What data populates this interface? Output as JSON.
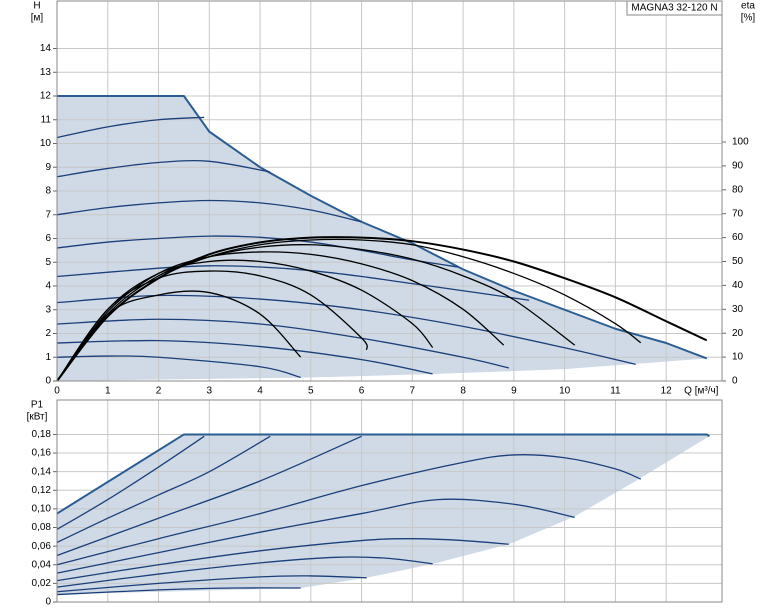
{
  "chart_data": [
    {
      "type": "line",
      "title": "MAGNA3 32-120 N",
      "xlabel": "Q [м³/ч]",
      "ylabel": "H",
      "yunit": "[м]",
      "y2label": "eta",
      "y2unit": "[%]",
      "xlim": [
        0,
        13.1
      ],
      "xticks": [
        0,
        1,
        2,
        3,
        4,
        5,
        6,
        7,
        8,
        9,
        10,
        11,
        12
      ],
      "ylim": [
        0,
        16
      ],
      "yticks": [
        0,
        1,
        2,
        3,
        4,
        5,
        6,
        7,
        8,
        9,
        10,
        11,
        12,
        13,
        14
      ],
      "y2lim": [
        0,
        159
      ],
      "y2ticks": [
        0,
        10,
        20,
        30,
        40,
        50,
        60,
        70,
        80,
        90,
        100
      ],
      "grid": true,
      "area": {
        "color": "#cfdae6",
        "x": [
          0,
          2.5,
          3,
          4,
          5,
          6,
          7,
          8,
          9,
          10,
          11,
          12,
          12.8,
          10,
          7.5,
          5,
          0
        ],
        "values": [
          12,
          12,
          10.5,
          9.0,
          7.8,
          6.7,
          5.8,
          4.7,
          3.8,
          3.0,
          2.2,
          1.6,
          0.95,
          0.5,
          0.3,
          0.15,
          0
        ]
      },
      "series": [
        {
          "color": "#2b5d93",
          "width": 2,
          "smooth": false,
          "x": [
            0,
            2.5,
            3,
            4,
            5,
            6,
            7,
            8,
            9,
            10,
            11,
            12,
            12.8
          ],
          "values": [
            12,
            12,
            10.5,
            9.0,
            7.8,
            6.7,
            5.8,
            4.7,
            3.8,
            3.0,
            2.2,
            1.6,
            0.95
          ]
        },
        {
          "color": "#1a3f7a",
          "x": [
            0,
            1,
            2,
            2.9
          ],
          "values": [
            10.25,
            10.7,
            11.0,
            11.1
          ]
        },
        {
          "color": "#1a3f7a",
          "x": [
            0,
            1,
            2,
            3,
            4.2
          ],
          "values": [
            8.6,
            8.95,
            9.2,
            9.25,
            8.8
          ]
        },
        {
          "color": "#1a3f7a",
          "x": [
            0,
            1,
            2,
            3,
            4,
            5,
            6
          ],
          "values": [
            7.0,
            7.3,
            7.5,
            7.6,
            7.5,
            7.2,
            6.7
          ]
        },
        {
          "color": "#1a3f7a",
          "x": [
            0,
            1,
            2,
            3,
            4,
            5,
            6,
            7,
            7.9
          ],
          "values": [
            5.6,
            5.85,
            6.0,
            6.1,
            6.05,
            5.85,
            5.5,
            5.1,
            4.8
          ]
        },
        {
          "color": "#1a3f7a",
          "x": [
            0,
            2,
            3,
            4,
            5,
            6,
            7,
            8,
            9.3
          ],
          "values": [
            4.4,
            4.75,
            4.85,
            4.8,
            4.65,
            4.4,
            4.1,
            3.8,
            3.4
          ]
        },
        {
          "color": "#1a3f7a",
          "x": [
            0,
            2,
            4,
            6,
            8,
            10,
            11.4
          ],
          "values": [
            3.3,
            3.6,
            3.45,
            3.0,
            2.3,
            1.4,
            0.7
          ]
        },
        {
          "color": "#1a3f7a",
          "x": [
            0,
            2,
            4,
            6,
            8,
            8.9
          ],
          "values": [
            2.4,
            2.6,
            2.4,
            1.8,
            1.0,
            0.55
          ]
        },
        {
          "color": "#1a3f7a",
          "x": [
            0,
            2,
            4,
            6,
            7.4
          ],
          "values": [
            1.6,
            1.7,
            1.45,
            0.9,
            0.3
          ]
        },
        {
          "color": "#1a3f7a",
          "x": [
            0,
            1,
            2,
            4,
            4.8
          ],
          "values": [
            1.0,
            1.05,
            1.0,
            0.6,
            0.15
          ]
        },
        {
          "color": "#000000",
          "axis": "y2",
          "width": 2,
          "x": [
            0,
            1,
            2,
            3,
            4,
            5,
            6,
            7,
            8,
            9,
            10,
            11,
            12,
            12.8
          ],
          "values": [
            0,
            27,
            43,
            53,
            58,
            60,
            60,
            58.5,
            55,
            50,
            43,
            35,
            25,
            17
          ]
        },
        {
          "color": "#000000",
          "axis": "y2",
          "x": [
            0,
            1,
            2,
            3,
            4,
            5,
            6,
            7,
            8,
            9,
            10,
            11,
            11.5
          ],
          "values": [
            0,
            27,
            43,
            52,
            57,
            59,
            59,
            57,
            52,
            45,
            36,
            24,
            16
          ]
        },
        {
          "color": "#000000",
          "axis": "y2",
          "x": [
            0,
            1,
            2,
            3,
            4,
            5,
            6,
            7,
            8,
            9,
            10.2
          ],
          "values": [
            0,
            28,
            44,
            52,
            56,
            57,
            55,
            51,
            44,
            34,
            15
          ]
        },
        {
          "color": "#000000",
          "axis": "y2",
          "x": [
            0,
            1,
            2,
            3,
            4,
            5,
            6,
            7,
            8,
            8.8
          ],
          "values": [
            0,
            29,
            45,
            52,
            54,
            53,
            49,
            42,
            30,
            15
          ]
        },
        {
          "color": "#000000",
          "axis": "y2",
          "x": [
            0,
            1,
            2,
            3,
            4,
            5,
            6,
            7,
            7.4
          ],
          "values": [
            0,
            30,
            45,
            50,
            50,
            46,
            38,
            24,
            14
          ]
        },
        {
          "color": "#000000",
          "axis": "y2",
          "x": [
            0,
            1,
            2,
            3,
            4,
            5,
            6,
            6.1
          ],
          "values": [
            0,
            30,
            43,
            46,
            44,
            36,
            18,
            13
          ]
        },
        {
          "color": "#000000",
          "axis": "y2",
          "x": [
            0,
            1,
            2,
            3,
            4,
            4.8
          ],
          "values": [
            0,
            28,
            36,
            37,
            28,
            10
          ]
        }
      ]
    },
    {
      "type": "line",
      "ylabel": "P1",
      "yunit": "[кВт]",
      "xlim": [
        0,
        13.1
      ],
      "xticks": [
        0,
        1,
        2,
        3,
        4,
        5,
        6,
        7,
        8,
        9,
        10,
        11,
        12
      ],
      "xtick_labels": false,
      "ylim": [
        0,
        0.217
      ],
      "yticks": [
        0,
        {
          "value": 0.02,
          "label": "0,02"
        },
        {
          "value": 0.04,
          "label": "0,04"
        },
        {
          "value": 0.06,
          "label": "0,06"
        },
        {
          "value": 0.08,
          "label": "0,08"
        },
        {
          "value": 0.1,
          "label": "0,10"
        },
        {
          "value": 0.12,
          "label": "0,12"
        },
        {
          "value": 0.14,
          "label": "0,14"
        },
        {
          "value": 0.16,
          "label": "0,16"
        },
        {
          "value": 0.18,
          "label": "0,18"
        }
      ],
      "grid": true,
      "area": {
        "color": "#cfdae6",
        "x": [
          0,
          2.5,
          12.8,
          12.85,
          11.4,
          10.2,
          8.9,
          7.4,
          6.1,
          4.8,
          0
        ],
        "values": [
          0.095,
          0.18,
          0.18,
          0.178,
          0.13,
          0.092,
          0.062,
          0.041,
          0.026,
          0.015,
          0.008
        ]
      },
      "series": [
        {
          "color": "#2b5d93",
          "width": 2,
          "smooth": false,
          "x": [
            0,
            2.5,
            12.8,
            12.85
          ],
          "values": [
            0.095,
            0.18,
            0.18,
            0.178
          ]
        },
        {
          "color": "#1a3f7a",
          "x": [
            0,
            1,
            2,
            2.9
          ],
          "values": [
            0.078,
            0.11,
            0.145,
            0.178
          ]
        },
        {
          "color": "#1a3f7a",
          "x": [
            0,
            1,
            2,
            3,
            4.2
          ],
          "values": [
            0.064,
            0.09,
            0.115,
            0.14,
            0.178
          ]
        },
        {
          "color": "#1a3f7a",
          "x": [
            0,
            2,
            4,
            6
          ],
          "values": [
            0.05,
            0.09,
            0.13,
            0.178
          ]
        },
        {
          "color": "#1a3f7a",
          "x": [
            0,
            2,
            4,
            6,
            8,
            9,
            10,
            11,
            11.5
          ],
          "values": [
            0.04,
            0.068,
            0.095,
            0.125,
            0.15,
            0.158,
            0.155,
            0.143,
            0.132
          ]
        },
        {
          "color": "#1a3f7a",
          "x": [
            0,
            2,
            4,
            6,
            7.5,
            9,
            10.2
          ],
          "values": [
            0.031,
            0.053,
            0.075,
            0.095,
            0.11,
            0.105,
            0.091
          ]
        },
        {
          "color": "#1a3f7a",
          "x": [
            0,
            2,
            4,
            6,
            7,
            8,
            8.9
          ],
          "values": [
            0.023,
            0.04,
            0.055,
            0.066,
            0.068,
            0.066,
            0.062
          ]
        },
        {
          "color": "#1a3f7a",
          "x": [
            0,
            2,
            4,
            5.5,
            6.5,
            7.4
          ],
          "values": [
            0.016,
            0.03,
            0.042,
            0.048,
            0.047,
            0.041
          ]
        },
        {
          "color": "#1a3f7a",
          "x": [
            0,
            2,
            4,
            5,
            6.1
          ],
          "values": [
            0.011,
            0.02,
            0.027,
            0.028,
            0.026
          ]
        },
        {
          "color": "#1a3f7a",
          "x": [
            0,
            2,
            3.5,
            4.8
          ],
          "values": [
            0.008,
            0.013,
            0.015,
            0.015
          ]
        }
      ]
    }
  ]
}
